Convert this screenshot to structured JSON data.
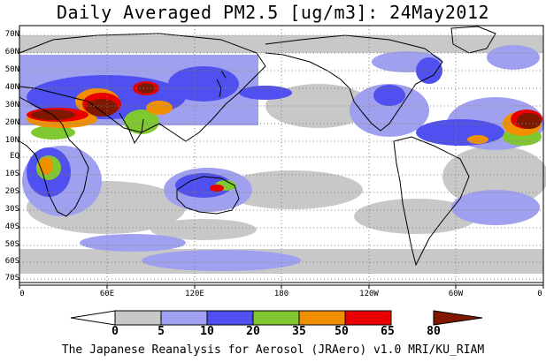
{
  "title": "Daily Averaged PM2.5 [ug/m3]: 24May2012",
  "footer": "The Japanese Reanalysis for Aerosol (JRAero) v1.0 MRI/KU_RIAM",
  "lat_labels": [
    "70N",
    "60N",
    "50N",
    "40N",
    "30N",
    "20N",
    "10N",
    "EQ",
    "10S",
    "20S",
    "30S",
    "40S",
    "50S",
    "60S",
    "70S"
  ],
  "lon_labels": [
    "0",
    "60E",
    "120E",
    "180",
    "120W",
    "60W",
    "0"
  ],
  "colorbar": {
    "ticks": [
      "0",
      "5",
      "10",
      "20",
      "35",
      "50",
      "65",
      "80"
    ],
    "colors": [
      "#ffffff",
      "#c8c8c8",
      "#a0a0f0",
      "#5050f0",
      "#80c830",
      "#f09000",
      "#e80000",
      "#801800"
    ]
  }
}
